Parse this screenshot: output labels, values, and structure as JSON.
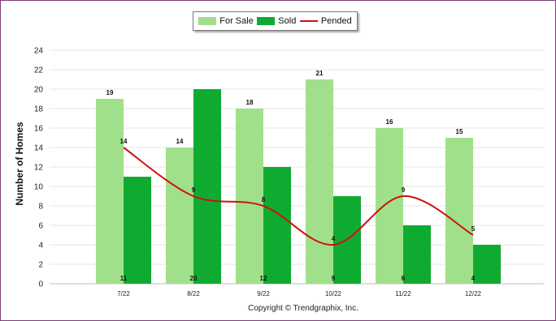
{
  "chart_data": {
    "type": "bar",
    "categories": [
      "7/22",
      "8/22",
      "9/22",
      "10/22",
      "11/22",
      "12/22"
    ],
    "series": [
      {
        "name": "For Sale",
        "kind": "bar",
        "color": "#a1e08a",
        "values": [
          19,
          14,
          18,
          21,
          16,
          15
        ]
      },
      {
        "name": "Sold",
        "kind": "bar",
        "color": "#0fab31",
        "values": [
          11,
          20,
          12,
          9,
          6,
          4
        ]
      },
      {
        "name": "Pended",
        "kind": "line",
        "color": "#cc1111",
        "values": [
          14,
          9,
          8,
          4,
          9,
          5
        ]
      }
    ],
    "ylabel": "Number of Homes",
    "xlabel": "",
    "ylim": [
      0,
      24
    ],
    "yticks": [
      0,
      2,
      4,
      6,
      8,
      10,
      12,
      14,
      16,
      18,
      20,
      22,
      24
    ],
    "grid": true,
    "legend_position": "top-center"
  },
  "copyright": "Copyright © Trendgraphix, Inc."
}
